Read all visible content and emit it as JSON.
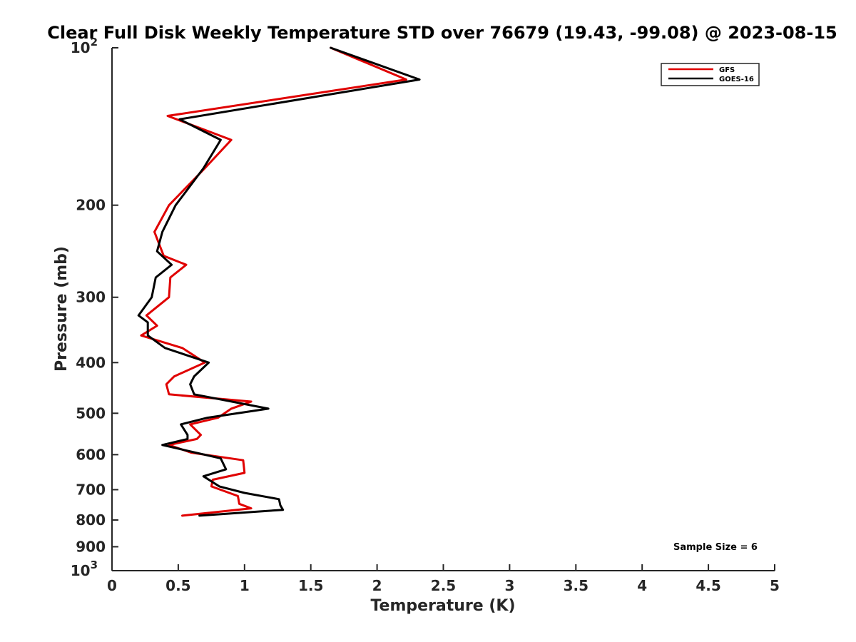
{
  "chart_data": {
    "type": "line",
    "title": "Clear Full Disk Weekly Temperature STD over 76679 (19.43, -99.08) @ 2023-08-15",
    "xlabel": "Temperature (K)",
    "ylabel": "Pressure (mb)",
    "xlim": [
      0,
      5
    ],
    "ylim": [
      100,
      1000
    ],
    "y_scale": "log",
    "y_reversed": true,
    "x_ticks": [
      {
        "value": 0,
        "label": "0"
      },
      {
        "value": 0.5,
        "label": "0.5"
      },
      {
        "value": 1,
        "label": "1"
      },
      {
        "value": 1.5,
        "label": "1.5"
      },
      {
        "value": 2,
        "label": "2"
      },
      {
        "value": 2.5,
        "label": "2.5"
      },
      {
        "value": 3,
        "label": "3"
      },
      {
        "value": 3.5,
        "label": "3.5"
      },
      {
        "value": 4,
        "label": "4"
      },
      {
        "value": 4.5,
        "label": "4.5"
      },
      {
        "value": 5,
        "label": "5"
      }
    ],
    "y_ticks": [
      {
        "value": 100,
        "label": "10",
        "sup": "2"
      },
      {
        "value": 200,
        "label": "200"
      },
      {
        "value": 300,
        "label": "300"
      },
      {
        "value": 400,
        "label": "400"
      },
      {
        "value": 500,
        "label": "500"
      },
      {
        "value": 600,
        "label": "600"
      },
      {
        "value": 700,
        "label": "700"
      },
      {
        "value": 800,
        "label": "800"
      },
      {
        "value": 900,
        "label": "900"
      },
      {
        "value": 1000,
        "label": "10",
        "sup": "3"
      }
    ],
    "grid": false,
    "legend_position": "top-right",
    "annotation": "Sample Size = 6",
    "series": [
      {
        "name": "GFS",
        "color": "#e00000",
        "points": [
          [
            1.65,
            100
          ],
          [
            2.22,
            115
          ],
          [
            0.42,
            135
          ],
          [
            0.9,
            150
          ],
          [
            0.7,
            170
          ],
          [
            0.43,
            200
          ],
          [
            0.32,
            225
          ],
          [
            0.39,
            250
          ],
          [
            0.56,
            260
          ],
          [
            0.44,
            275
          ],
          [
            0.43,
            300
          ],
          [
            0.26,
            325
          ],
          [
            0.34,
            340
          ],
          [
            0.22,
            355
          ],
          [
            0.53,
            375
          ],
          [
            0.7,
            400
          ],
          [
            0.47,
            425
          ],
          [
            0.41,
            440
          ],
          [
            0.43,
            460
          ],
          [
            1.05,
            475
          ],
          [
            0.9,
            490
          ],
          [
            0.8,
            510
          ],
          [
            0.59,
            525
          ],
          [
            0.67,
            550
          ],
          [
            0.64,
            560
          ],
          [
            0.43,
            575
          ],
          [
            0.6,
            595
          ],
          [
            0.99,
            615
          ],
          [
            1.0,
            650
          ],
          [
            0.76,
            670
          ],
          [
            0.75,
            690
          ],
          [
            0.95,
            720
          ],
          [
            0.96,
            745
          ],
          [
            1.05,
            760
          ],
          [
            0.53,
            785
          ]
        ]
      },
      {
        "name": "GOES-16",
        "color": "#000000",
        "points": [
          [
            1.65,
            100
          ],
          [
            2.32,
            115
          ],
          [
            0.51,
            137
          ],
          [
            0.82,
            150
          ],
          [
            0.69,
            170
          ],
          [
            0.48,
            200
          ],
          [
            0.38,
            225
          ],
          [
            0.34,
            245
          ],
          [
            0.45,
            260
          ],
          [
            0.33,
            275
          ],
          [
            0.3,
            300
          ],
          [
            0.2,
            325
          ],
          [
            0.27,
            335
          ],
          [
            0.27,
            355
          ],
          [
            0.4,
            375
          ],
          [
            0.73,
            400
          ],
          [
            0.62,
            425
          ],
          [
            0.59,
            440
          ],
          [
            0.62,
            460
          ],
          [
            1.18,
            490
          ],
          [
            0.72,
            510
          ],
          [
            0.52,
            525
          ],
          [
            0.57,
            550
          ],
          [
            0.57,
            560
          ],
          [
            0.38,
            575
          ],
          [
            0.82,
            610
          ],
          [
            0.86,
            640
          ],
          [
            0.69,
            660
          ],
          [
            0.81,
            690
          ],
          [
            1.0,
            710
          ],
          [
            1.26,
            730
          ],
          [
            1.27,
            750
          ],
          [
            1.29,
            765
          ],
          [
            0.66,
            785
          ]
        ]
      }
    ]
  }
}
